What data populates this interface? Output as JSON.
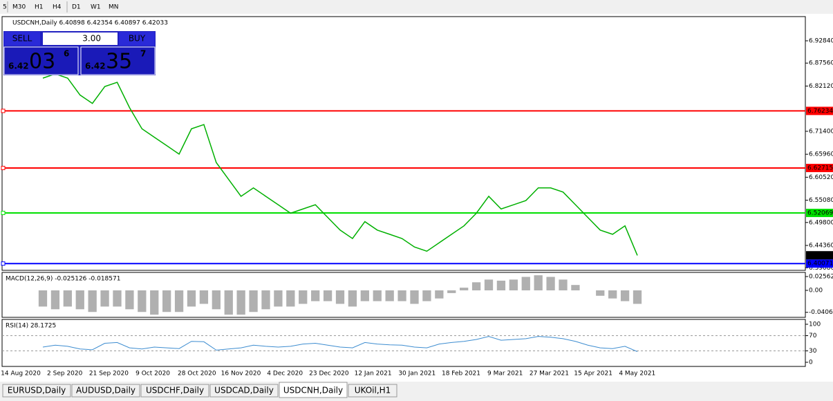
{
  "toolbar": {
    "timeframes": [
      "5",
      "M30",
      "H1",
      "H4",
      "D1",
      "W1",
      "MN"
    ]
  },
  "chart": {
    "symbol_info": "USDCNH,Daily  6.40898 6.42354 6.40897 6.42033",
    "ylim": [
      6.3863,
      6.9841
    ],
    "yticks": [
      {
        "value": 6.9284,
        "label": "6.92840"
      },
      {
        "value": 6.8756,
        "label": "6.87560"
      },
      {
        "value": 6.8212,
        "label": "6.82120"
      },
      {
        "value": 6.714,
        "label": "6.71400"
      },
      {
        "value": 6.6596,
        "label": "6.65960"
      },
      {
        "value": 6.6052,
        "label": "6.60520"
      },
      {
        "value": 6.5508,
        "label": "6.55080"
      },
      {
        "value": 6.498,
        "label": "6.49800"
      },
      {
        "value": 6.4436,
        "label": "6.44360"
      },
      {
        "value": 6.3908,
        "label": "6.39080"
      }
    ],
    "levels": [
      {
        "value": 6.76234,
        "label": "6.76234",
        "color": "#ff0000"
      },
      {
        "value": 6.62715,
        "label": "6.62715",
        "color": "#ff0000"
      },
      {
        "value": 6.52069,
        "label": "6.52069",
        "color": "#00e000"
      },
      {
        "value": 6.40071,
        "label": "6.40071",
        "color": "#0000ff"
      }
    ],
    "bid": {
      "value": 6.42033,
      "label": "6.42033"
    },
    "price_color": "#00b000",
    "closes": [
      6.84,
      6.85,
      6.84,
      6.8,
      6.78,
      6.82,
      6.83,
      6.77,
      6.72,
      6.7,
      6.68,
      6.66,
      6.72,
      6.73,
      6.64,
      6.6,
      6.56,
      6.58,
      6.56,
      6.54,
      6.52,
      6.53,
      6.54,
      6.51,
      6.48,
      6.46,
      6.5,
      6.48,
      6.47,
      6.46,
      6.44,
      6.43,
      6.45,
      6.47,
      6.49,
      6.52,
      6.56,
      6.53,
      6.54,
      6.55,
      6.58,
      6.58,
      6.57,
      6.54,
      6.51,
      6.48,
      6.47,
      6.49,
      6.42
    ]
  },
  "macd": {
    "label": "MACD(12,26,9) -0.025126 -0.018571",
    "ylim": [
      -0.0487,
      0.032
    ],
    "yticks": [
      0.02562,
      {
        "value": 0,
        "label": "0.00"
      },
      -0.04068
    ],
    "values": [
      -0.03,
      -0.035,
      -0.03,
      -0.035,
      -0.04,
      -0.03,
      -0.03,
      -0.035,
      -0.04,
      -0.045,
      -0.04,
      -0.04,
      -0.03,
      -0.025,
      -0.035,
      -0.045,
      -0.045,
      -0.04,
      -0.035,
      -0.03,
      -0.03,
      -0.025,
      -0.02,
      -0.02,
      -0.025,
      -0.03,
      -0.02,
      -0.02,
      -0.02,
      -0.02,
      -0.025,
      -0.02,
      -0.015,
      -0.005,
      0.005,
      0.015,
      0.02,
      0.018,
      0.02,
      0.025,
      0.028,
      0.025,
      0.02,
      0.01,
      0,
      -0.01,
      -0.015,
      -0.02,
      -0.025
    ]
  },
  "rsi": {
    "label": "RSI(14) 28.1725",
    "ylim": [
      -10.9,
      112.7
    ],
    "yticks": [
      100,
      70,
      30,
      0
    ],
    "values": [
      40,
      45,
      42,
      35,
      33,
      50,
      52,
      38,
      35,
      40,
      38,
      36,
      55,
      54,
      32,
      35,
      38,
      45,
      42,
      40,
      42,
      48,
      50,
      45,
      40,
      38,
      52,
      48,
      46,
      45,
      40,
      38,
      48,
      52,
      55,
      60,
      68,
      58,
      60,
      62,
      68,
      66,
      62,
      55,
      45,
      38,
      36,
      42,
      28
    ]
  },
  "dates": [
    "14 Aug 2020",
    "2 Sep 2020",
    "21 Sep 2020",
    "9 Oct 2020",
    "28 Oct 2020",
    "16 Nov 2020",
    "4 Dec 2020",
    "23 Dec 2020",
    "12 Jan 2021",
    "30 Jan 2021",
    "18 Feb 2021",
    "9 Mar 2021",
    "27 Mar 2021",
    "15 Apr 2021",
    "4 May 2021"
  ],
  "tabs": [
    "EURUSD,Daily",
    "AUDUSD,Daily",
    "USDCHF,Daily",
    "USDCAD,Daily",
    "USDCNH,Daily",
    "UKOil,H1"
  ],
  "active_tab": "USDCNH,Daily",
  "trade_panel": {
    "sell": "SELL",
    "buy": "BUY",
    "lots": "3.00",
    "sell_price": {
      "big": "6.42",
      "pips": "03",
      "frac": "6"
    },
    "buy_price": {
      "big": "6.42",
      "pips": "35",
      "frac": "7"
    }
  }
}
